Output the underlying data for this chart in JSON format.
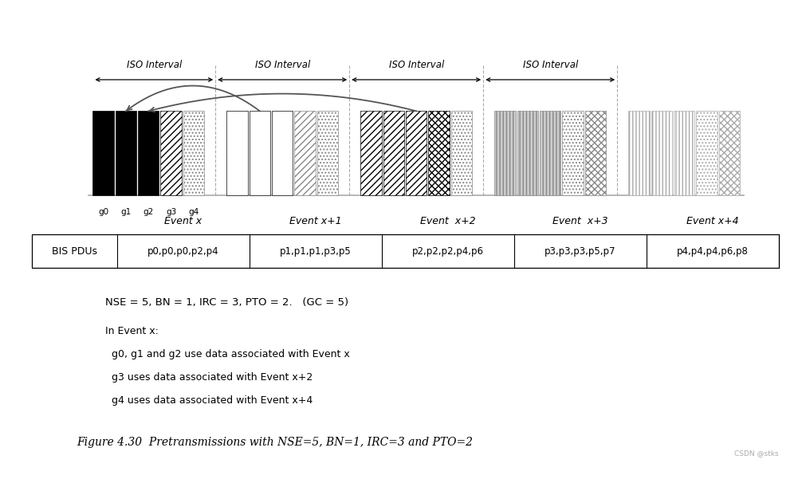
{
  "bg_color": "#ffffff",
  "iso_interval_label": "ISO Interval",
  "event_labels": [
    "Event x",
    "Event x+1",
    "Event  x+2",
    "Event  x+3",
    "Event x+4"
  ],
  "bis_label": "BIS PDUs",
  "pdu_rows": [
    "p0,p0,p0,p2,p4",
    "p1,p1,p1,p3,p5",
    "p2,p2,p2,p4,p6",
    "p3,p3,p3,p5,p7",
    "p4,p4,p4,p6,p8"
  ],
  "param_text": "NSE = 5, BN = 1, IRC = 3, PTO = 2.   (GC = 5)",
  "note_lines": [
    "In Event x:",
    "  g0, g1 and g2 use data associated with Event x",
    "  g3 uses data associated with Event x+2",
    "  g4 uses data associated with Event x+4"
  ],
  "figure_caption": "Figure 4.30  Pretransmissions with NSE=5, BN=1, IRC=3 and PTO=2",
  "watermark": "CSDN @stks",
  "group_labels": [
    "g0",
    "g1",
    "g2",
    "g3",
    "g4"
  ],
  "bar_patterns": [
    [
      {
        "fc": "black",
        "hatch": "",
        "ec": "black",
        "lw": 0.5
      },
      {
        "fc": "black",
        "hatch": "",
        "ec": "black",
        "lw": 0.5
      },
      {
        "fc": "black",
        "hatch": "",
        "ec": "black",
        "lw": 0.5
      },
      {
        "fc": "white",
        "hatch": "////",
        "ec": "black",
        "lw": 0.5
      },
      {
        "fc": "white",
        "hatch": "....",
        "ec": "#888888",
        "lw": 0.5
      }
    ],
    [
      {
        "fc": "white",
        "hatch": "",
        "ec": "black",
        "lw": 0.5
      },
      {
        "fc": "white",
        "hatch": "",
        "ec": "black",
        "lw": 0.5
      },
      {
        "fc": "white",
        "hatch": "",
        "ec": "black",
        "lw": 0.5
      },
      {
        "fc": "white",
        "hatch": "////",
        "ec": "#888888",
        "lw": 0.5
      },
      {
        "fc": "white",
        "hatch": "....",
        "ec": "#888888",
        "lw": 0.5
      }
    ],
    [
      {
        "fc": "white",
        "hatch": "////",
        "ec": "black",
        "lw": 0.5
      },
      {
        "fc": "white",
        "hatch": "////",
        "ec": "black",
        "lw": 0.5
      },
      {
        "fc": "white",
        "hatch": "////",
        "ec": "black",
        "lw": 0.5
      },
      {
        "fc": "white",
        "hatch": "xxxx",
        "ec": "black",
        "lw": 0.5
      },
      {
        "fc": "white",
        "hatch": "....",
        "ec": "#888888",
        "lw": 0.5
      }
    ],
    [
      {
        "fc": "#cccccc",
        "hatch": "||||",
        "ec": "#888888",
        "lw": 0.5
      },
      {
        "fc": "#cccccc",
        "hatch": "||||",
        "ec": "#888888",
        "lw": 0.5
      },
      {
        "fc": "#cccccc",
        "hatch": "||||",
        "ec": "#888888",
        "lw": 0.5
      },
      {
        "fc": "white",
        "hatch": "....",
        "ec": "#888888",
        "lw": 0.5
      },
      {
        "fc": "white",
        "hatch": "xxxx",
        "ec": "#888888",
        "lw": 0.5
      }
    ],
    [
      {
        "fc": "white",
        "hatch": "||||",
        "ec": "#aaaaaa",
        "lw": 0.5
      },
      {
        "fc": "white",
        "hatch": "||||",
        "ec": "#aaaaaa",
        "lw": 0.5
      },
      {
        "fc": "white",
        "hatch": "||||",
        "ec": "#aaaaaa",
        "lw": 0.5
      },
      {
        "fc": "white",
        "hatch": "....",
        "ec": "#aaaaaa",
        "lw": 0.5
      },
      {
        "fc": "white",
        "hatch": "xxxx",
        "ec": "#aaaaaa",
        "lw": 0.5
      }
    ]
  ]
}
